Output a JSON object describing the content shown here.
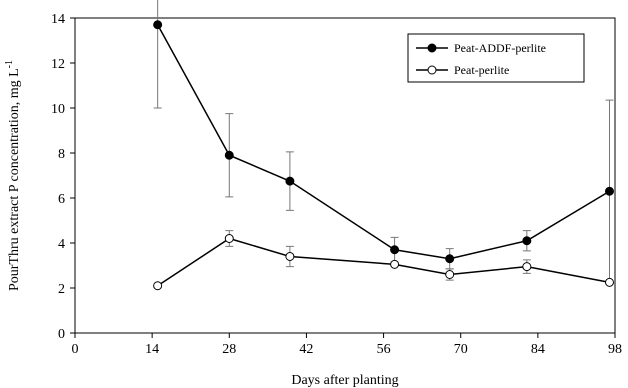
{
  "chart_data": {
    "type": "line",
    "xlabel": "Days after planting",
    "ylabel": "PourThru extract P concentration, mg L",
    "ylabel_sup": "-1",
    "xlim": [
      0,
      98
    ],
    "ylim": [
      0,
      14
    ],
    "xticks": [
      "0",
      "14",
      "28",
      "42",
      "56",
      "70",
      "84",
      "98"
    ],
    "yticks": [
      "0",
      "2",
      "4",
      "6",
      "8",
      "10",
      "12",
      "14"
    ],
    "grid": false,
    "legend_position": "top-right",
    "series": [
      {
        "name": "Peat-ADDF-perlite",
        "marker": "filled-circle",
        "color": "#000000",
        "x": [
          15,
          28,
          39,
          58,
          68,
          82,
          97
        ],
        "y": [
          13.7,
          7.9,
          6.75,
          3.7,
          3.3,
          4.1,
          6.3
        ],
        "error": [
          3.7,
          1.85,
          1.3,
          0.55,
          0.45,
          0.45,
          4.05
        ]
      },
      {
        "name": "Peat-perlite",
        "marker": "open-circle",
        "color": "#000000",
        "x": [
          15,
          28,
          39,
          58,
          68,
          82,
          97
        ],
        "y": [
          2.1,
          4.2,
          3.4,
          3.05,
          2.6,
          2.95,
          2.25
        ],
        "error": [
          0,
          0.35,
          0.45,
          0,
          0.25,
          0.3,
          0
        ]
      }
    ]
  }
}
